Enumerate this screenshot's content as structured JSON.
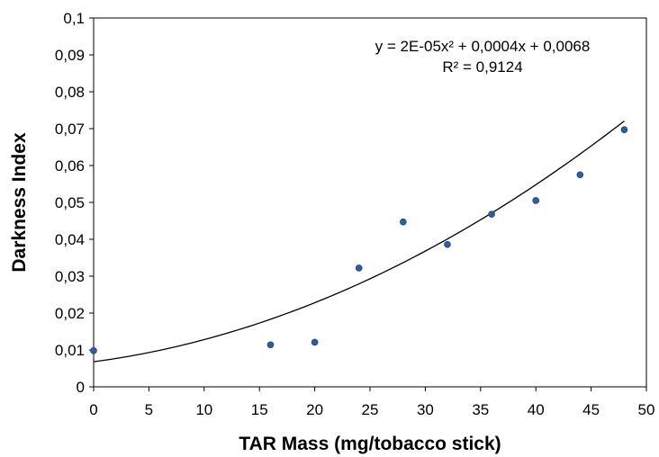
{
  "chart_data": {
    "type": "scatter",
    "title": "",
    "xlabel": "TAR Mass (mg/tobacco stick)",
    "ylabel": "Darkness Index",
    "xlim": [
      0,
      50
    ],
    "ylim": [
      0,
      0.1
    ],
    "x_ticks": [
      0,
      5,
      10,
      15,
      20,
      25,
      30,
      35,
      40,
      45,
      50
    ],
    "y_ticks": [
      0,
      0.01,
      0.02,
      0.03,
      0.04,
      0.05,
      0.06,
      0.07,
      0.08,
      0.09,
      0.1
    ],
    "x_tick_labels": [
      "0",
      "5",
      "10",
      "15",
      "20",
      "25",
      "30",
      "35",
      "40",
      "45",
      "50"
    ],
    "y_tick_labels": [
      "0",
      "0,01",
      "0,02",
      "0,03",
      "0,04",
      "0,05",
      "0,06",
      "0,07",
      "0,08",
      "0,09",
      "0,1"
    ],
    "grid": false,
    "legend": "none",
    "series": [
      {
        "x": [
          0,
          16,
          20,
          24,
          28,
          32,
          36,
          40,
          44,
          48
        ],
        "y": [
          0.0098,
          0.0114,
          0.0121,
          0.0322,
          0.0447,
          0.0386,
          0.0468,
          0.0505,
          0.0575,
          0.0697
        ],
        "color": "#2e5f9e"
      }
    ],
    "trendline": {
      "type": "polynomial",
      "coefficients": [
        2e-05,
        0.0004,
        0.0068
      ],
      "x_range": [
        0,
        48
      ],
      "color": "#000000"
    },
    "annotations": {
      "equation": "y = 2E-05x² + 0,0004x + 0,0068",
      "r_squared": "R² = 0,9124"
    }
  }
}
